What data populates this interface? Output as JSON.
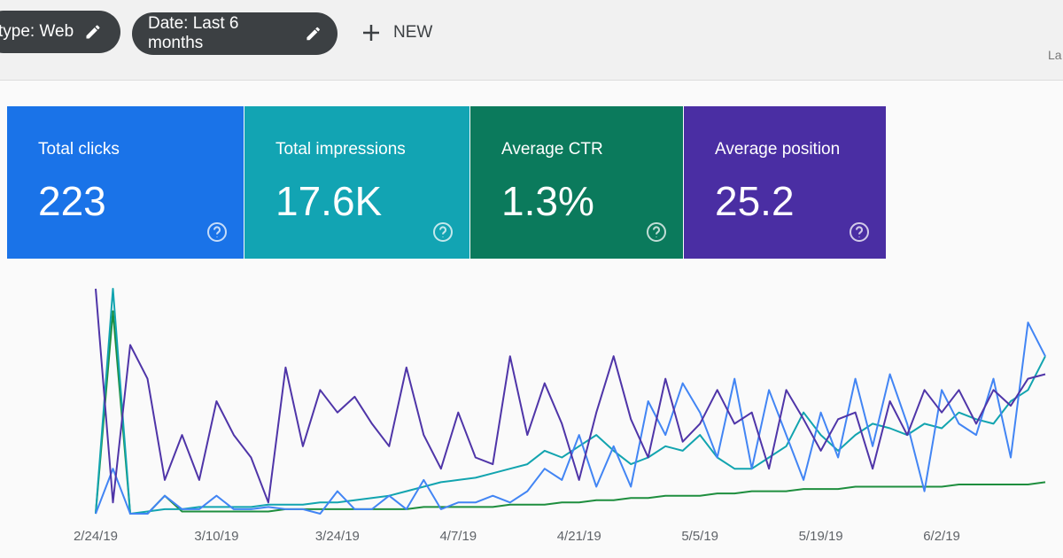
{
  "filters": [
    {
      "label": "type: Web"
    },
    {
      "label": "Date: Last 6 months"
    }
  ],
  "new_button": "NEW",
  "truncated_text": "La",
  "metrics": [
    {
      "label": "Total clicks",
      "value": "223",
      "color": "#1a73e8",
      "line_color": "#4285f4",
      "series": [
        0,
        20,
        0,
        0,
        8,
        2,
        2,
        8,
        2,
        2,
        3,
        2,
        2,
        0,
        10,
        2,
        2,
        8,
        2,
        15,
        2,
        5,
        5,
        8,
        5,
        10,
        20,
        15,
        35,
        12,
        30,
        12,
        50,
        35,
        58,
        45,
        25,
        60,
        20,
        55,
        35,
        15,
        45,
        25,
        60,
        30,
        62,
        40,
        10,
        55,
        40,
        35,
        60,
        25,
        85,
        70
      ]
    },
    {
      "label": "Total impressions",
      "value": "17.6K",
      "color": "#12a4b3",
      "line_color": "#12a4af",
      "series": [
        0,
        100,
        0,
        1,
        2,
        2,
        3,
        3,
        3,
        3,
        4,
        4,
        4,
        5,
        5,
        6,
        7,
        8,
        10,
        12,
        14,
        15,
        16,
        18,
        20,
        22,
        28,
        25,
        30,
        35,
        28,
        22,
        25,
        30,
        28,
        35,
        25,
        20,
        20,
        25,
        30,
        45,
        35,
        28,
        35,
        40,
        38,
        35,
        40,
        38,
        45,
        42,
        40,
        50,
        55,
        70
      ]
    },
    {
      "label": "Average CTR",
      "value": "1.3%",
      "color": "#0b7a5c",
      "line_color": "#1e8e3e",
      "series": [
        0,
        90,
        0,
        0,
        8,
        1,
        1,
        1,
        1,
        1,
        1,
        2,
        2,
        2,
        2,
        2,
        2,
        2,
        2,
        3,
        3,
        3,
        3,
        3,
        4,
        4,
        4,
        5,
        5,
        6,
        6,
        7,
        7,
        8,
        8,
        8,
        9,
        9,
        10,
        10,
        10,
        11,
        11,
        11,
        12,
        12,
        12,
        12,
        12,
        12,
        13,
        13,
        13,
        13,
        13,
        14
      ]
    },
    {
      "label": "Average position",
      "value": "25.2",
      "color": "#4a2ea3",
      "line_color": "#4f35a8",
      "series": [
        100,
        5,
        75,
        60,
        15,
        35,
        15,
        50,
        35,
        25,
        5,
        65,
        30,
        55,
        45,
        52,
        40,
        30,
        65,
        35,
        20,
        45,
        25,
        22,
        70,
        35,
        58,
        40,
        15,
        45,
        70,
        42,
        25,
        60,
        32,
        40,
        55,
        40,
        45,
        20,
        55,
        42,
        28,
        42,
        45,
        20,
        50,
        35,
        55,
        45,
        55,
        40,
        55,
        48,
        60,
        62
      ]
    }
  ],
  "chart": {
    "ylim": [
      0,
      100
    ],
    "x_labels": [
      "2/24/19",
      "3/10/19",
      "3/24/19",
      "4/7/19",
      "4/21/19",
      "5/5/19",
      "5/19/19",
      "6/2/19"
    ]
  }
}
